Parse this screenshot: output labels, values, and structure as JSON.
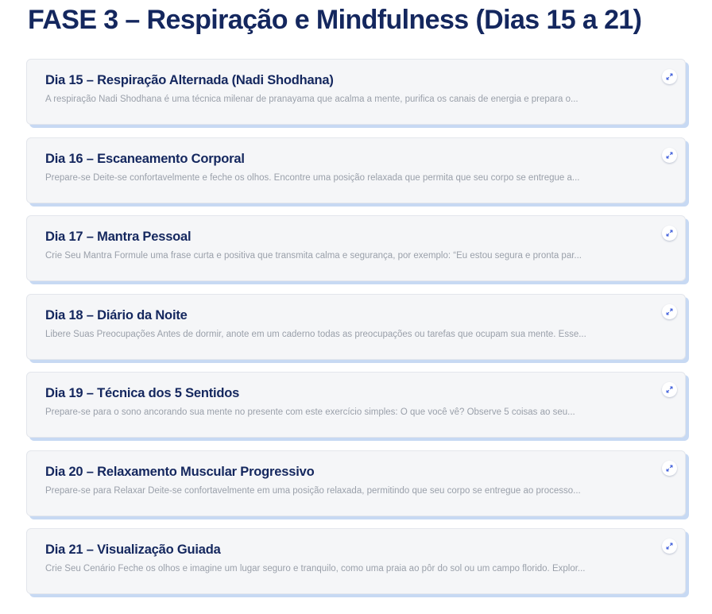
{
  "page": {
    "title": "FASE 3 – Respiração e Mindfulness (Dias 15 a 21)"
  },
  "colors": {
    "title": "#14275e",
    "card_background": "#f5f6f8",
    "card_shadow": "#c7d9f3",
    "description": "#9aa0aa"
  },
  "cards": [
    {
      "title": "Dia 15 – Respiração Alternada (Nadi Shodhana)",
      "description": "A respiração Nadi Shodhana é uma técnica milenar de pranayama que acalma a mente, purifica os canais de energia e prepara o...",
      "icon": "expand-icon"
    },
    {
      "title": "Dia 16 – Escaneamento Corporal",
      "description": "Prepare-se Deite-se confortavelmente e feche os olhos. Encontre uma posição relaxada que permita que seu corpo se entregue a...",
      "icon": "expand-icon"
    },
    {
      "title": "Dia 17 – Mantra Pessoal",
      "description": "Crie Seu Mantra Formule uma frase curta e positiva que transmita calma e segurança, por exemplo: “Eu estou segura e pronta par...",
      "icon": "expand-icon"
    },
    {
      "title": "Dia 18 – Diário da Noite",
      "description": "Libere Suas Preocupações Antes de dormir, anote em um caderno todas as preocupações ou tarefas que ocupam sua mente. Esse...",
      "icon": "expand-icon"
    },
    {
      "title": "Dia 19 – Técnica dos 5 Sentidos",
      "description": "Prepare-se para o sono ancorando sua mente no presente com este exercício simples: O que você vê? Observe 5 coisas ao seu...",
      "icon": "expand-icon"
    },
    {
      "title": "Dia 20 – Relaxamento Muscular Progressivo",
      "description": "Prepare-se para Relaxar Deite-se confortavelmente em uma posição relaxada, permitindo que seu corpo se entregue ao processo...",
      "icon": "expand-icon"
    },
    {
      "title": "Dia 21 – Visualização Guiada",
      "description": "Crie Seu Cenário Feche os olhos e imagine um lugar seguro e tranquilo, como uma praia ao pôr do sol ou um campo florido. Explor...",
      "icon": "expand-icon"
    }
  ]
}
